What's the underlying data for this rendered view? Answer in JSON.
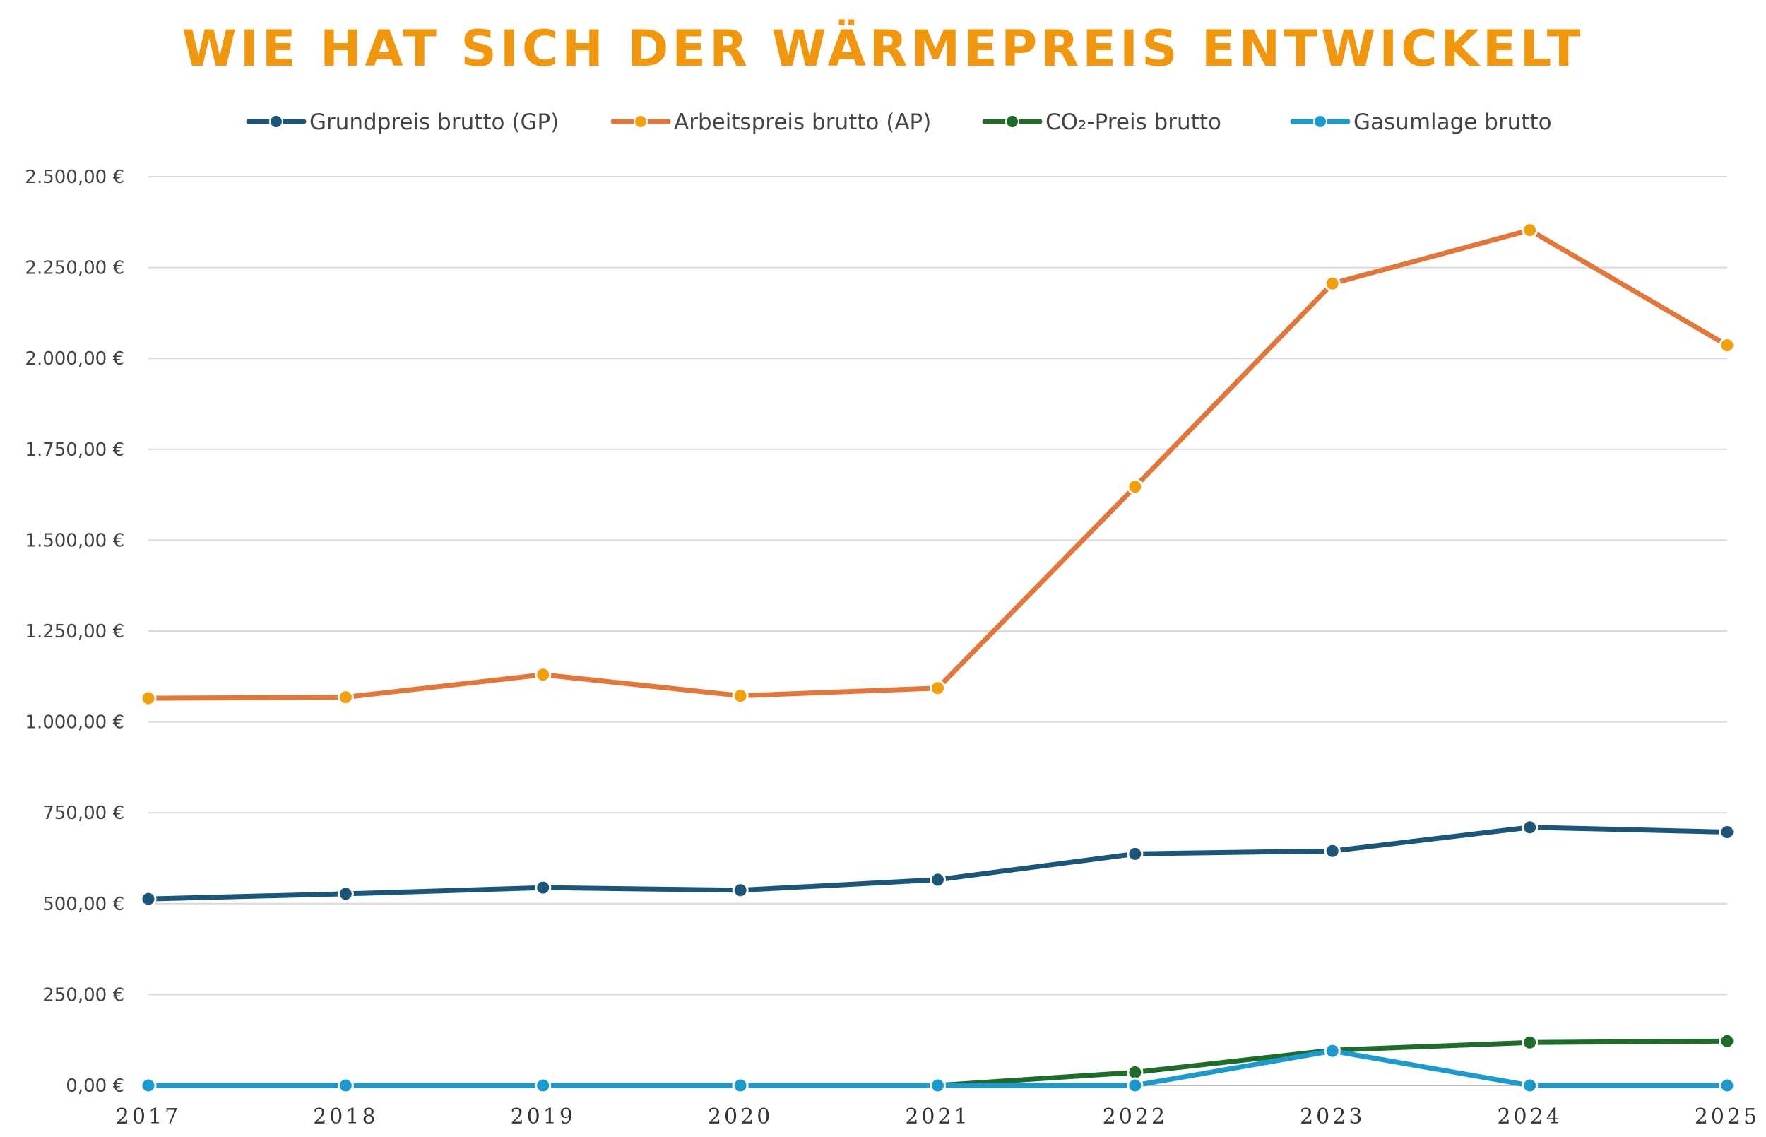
{
  "chart_data": {
    "type": "line",
    "title": "WIE HAT SICH DER WÄRMEPREIS ENTWICKELT",
    "xlabel": "",
    "ylabel": "",
    "categories": [
      "2017",
      "2018",
      "2019",
      "2020",
      "2021",
      "2022",
      "2023",
      "2024",
      "2025"
    ],
    "y_ticks": [
      "0,00 €",
      "250,00 €",
      "500,00 €",
      "750,00 €",
      "1.000,00 €",
      "1.250,00 €",
      "1.500,00 €",
      "1.750,00 €",
      "2.000,00 €",
      "2.250,00 €",
      "2.500,00 €"
    ],
    "ylim": [
      0,
      2500
    ],
    "grid": true,
    "legend_position": "top",
    "series": [
      {
        "name": "Grundpreis brutto (GP)",
        "line_color": "#1B5679",
        "marker_color": "#1B5679",
        "values": [
          513,
          527,
          544,
          537,
          566,
          637,
          645,
          710,
          697
        ]
      },
      {
        "name": "Arbeitspreis brutto (AP)",
        "line_color": "#E3763B",
        "marker_color": "#F29F0C",
        "values": [
          1065,
          1068,
          1130,
          1072,
          1093,
          1647,
          2206,
          2353,
          2036
        ]
      },
      {
        "name": "CO₂-Preis brutto",
        "line_color": "#1E6B2A",
        "marker_color": "#1E6B2A",
        "values": [
          0,
          0,
          0,
          0,
          0,
          36,
          97,
          118,
          122
        ]
      },
      {
        "name": "Gasumlage brutto",
        "line_color": "#1D9ACD",
        "marker_color": "#1D9ACD",
        "values": [
          0,
          0,
          0,
          0,
          0,
          0,
          95,
          0,
          0
        ]
      }
    ]
  }
}
